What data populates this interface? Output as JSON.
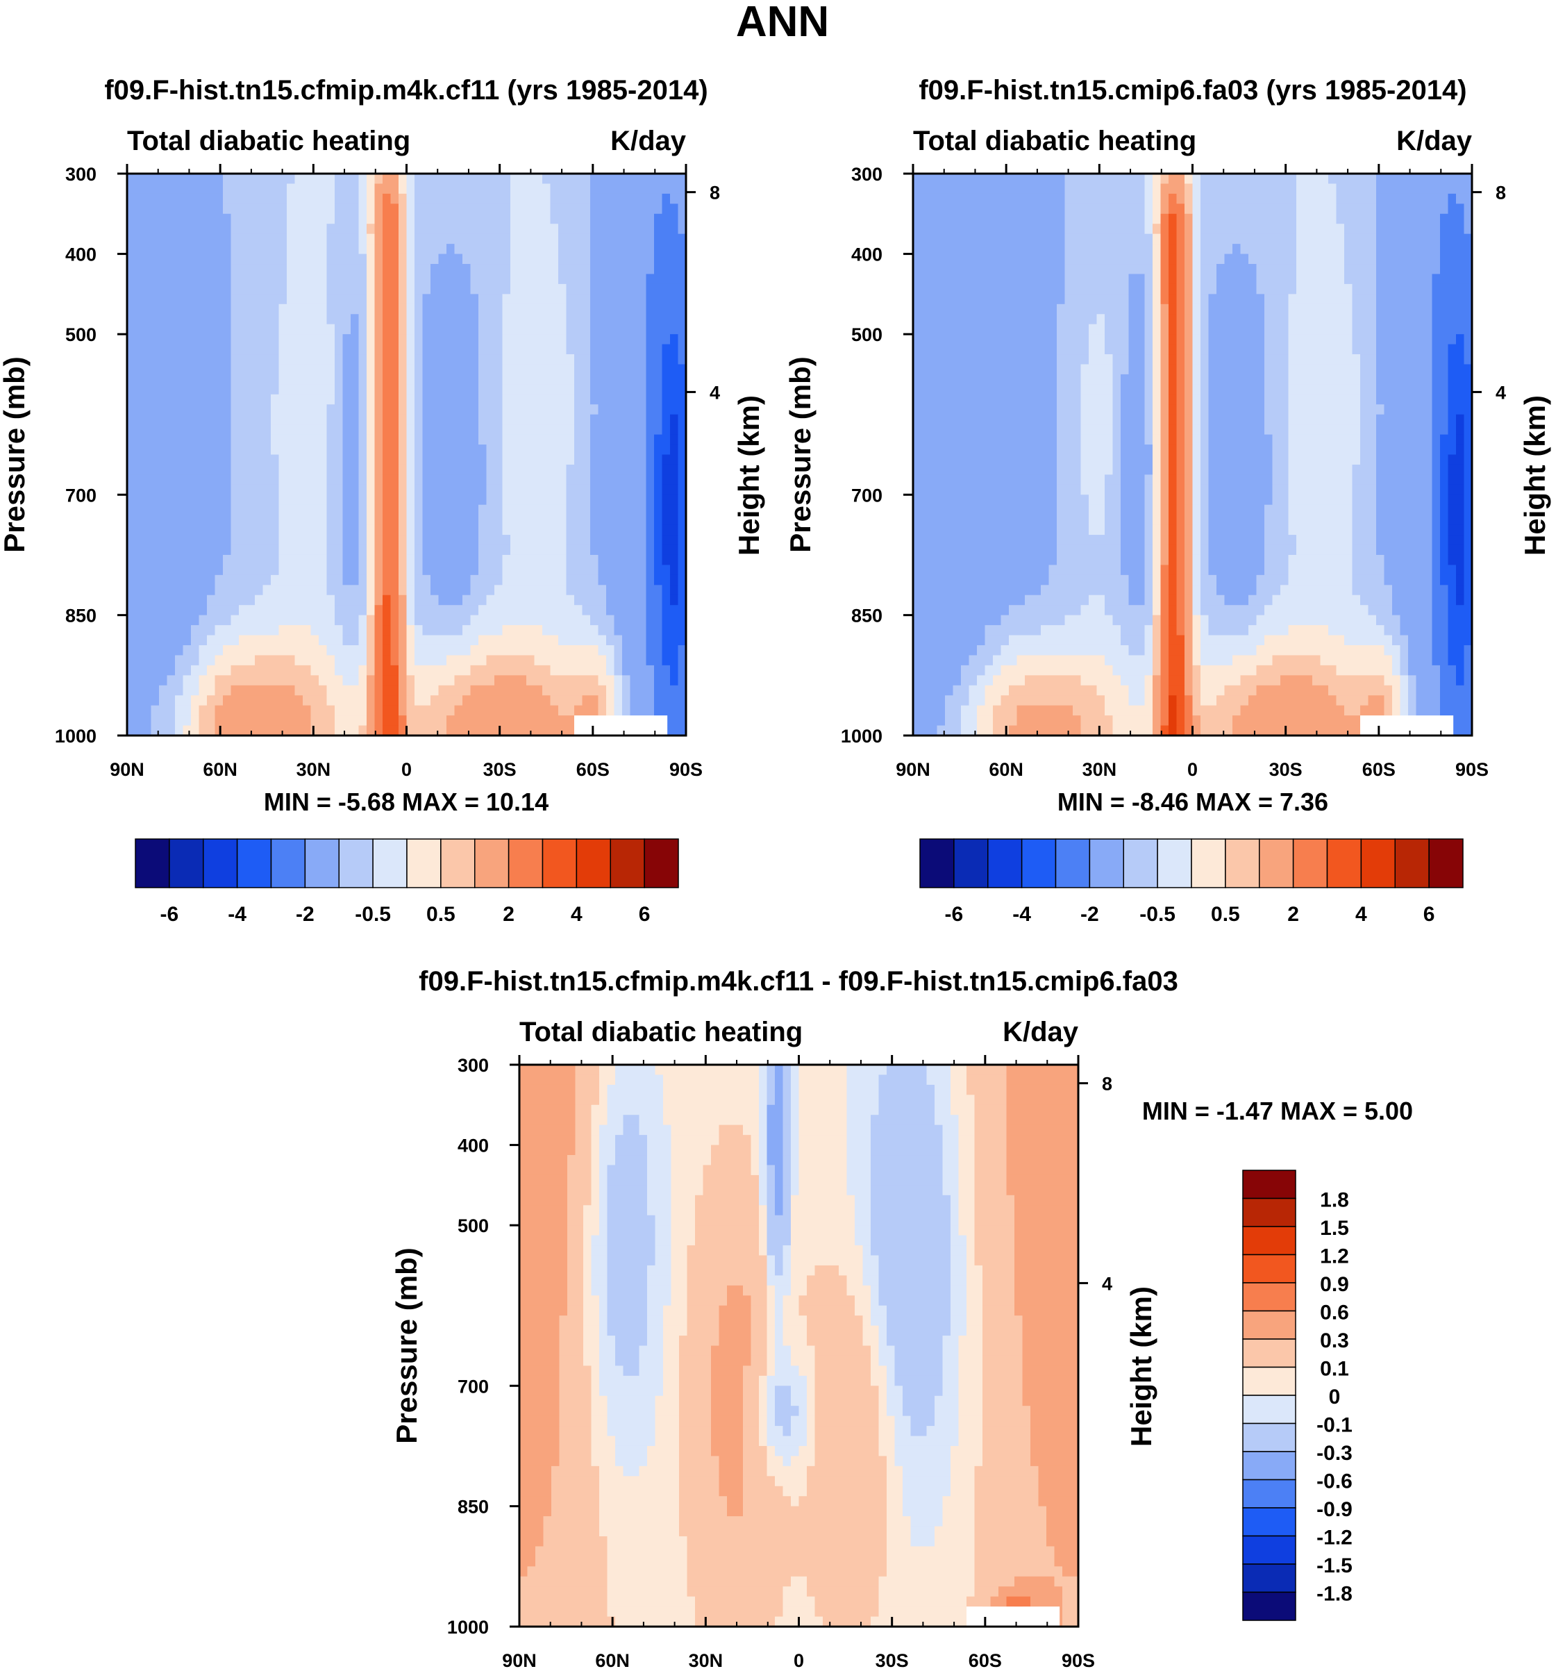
{
  "figure_title": "ANN",
  "colors": {
    "full": [
      "#0b0b78",
      "#0a2bb5",
      "#0f3fe0",
      "#1e5cf5",
      "#4c80f5",
      "#88aaf7",
      "#b6cbf8",
      "#dbe7fa",
      "#fde9d8",
      "#fbc7aa",
      "#f8a47d",
      "#f77e4e",
      "#f2571f",
      "#e33c08",
      "#b82605",
      "#870506"
    ],
    "diff": [
      "#0b0b78",
      "#0a2bb5",
      "#0f3fe0",
      "#1e5cf5",
      "#4c80f5",
      "#88aaf7",
      "#b6cbf8",
      "#dbe7fa",
      "#fde9d8",
      "#fbc7aa",
      "#f8a47d",
      "#f77e4e",
      "#f2571f",
      "#e33c08",
      "#b82605",
      "#870506"
    ]
  },
  "chart_data": [
    {
      "type": "heatmap",
      "id": "panel-a",
      "title": "f09.F-hist.tn15.cfmip.m4k.cf11 (yrs 1985-2014)",
      "left_label": "Total diabatic heating",
      "right_label": "K/day",
      "xlabel": "",
      "ylabel": "Pressure (mb)",
      "y2label": "Height (km)",
      "x_ticks": [
        "90N",
        "60N",
        "30N",
        "0",
        "30S",
        "60S",
        "90S"
      ],
      "y_ticks": [
        300,
        400,
        500,
        700,
        850,
        1000
      ],
      "y2_ticks": [
        8,
        4
      ],
      "xlim": [
        90,
        -90
      ],
      "ylim": [
        1000,
        300
      ],
      "min_label": "MIN =",
      "min": "-5.68",
      "max_label": "MAX =",
      "max": "10.14",
      "colorbar_orientation": "horizontal",
      "colorbar_labels": [
        "-6",
        "-4",
        "-2",
        "-0.5",
        "0.5",
        "2",
        "4",
        "6"
      ]
    },
    {
      "type": "heatmap",
      "id": "panel-b",
      "title": "f09.F-hist.tn15.cmip6.fa03 (yrs 1985-2014)",
      "left_label": "Total diabatic heating",
      "right_label": "K/day",
      "xlabel": "",
      "ylabel": "Pressure (mb)",
      "y2label": "Height (km)",
      "x_ticks": [
        "90N",
        "60N",
        "30N",
        "0",
        "30S",
        "60S",
        "90S"
      ],
      "y_ticks": [
        300,
        400,
        500,
        700,
        850,
        1000
      ],
      "y2_ticks": [
        8,
        4
      ],
      "xlim": [
        90,
        -90
      ],
      "ylim": [
        1000,
        300
      ],
      "min_label": "MIN =",
      "min": "-8.46",
      "max_label": "MAX =",
      "max": "7.36",
      "colorbar_orientation": "horizontal",
      "colorbar_labels": [
        "-6",
        "-4",
        "-2",
        "-0.5",
        "0.5",
        "2",
        "4",
        "6"
      ]
    },
    {
      "type": "heatmap",
      "id": "panel-c",
      "title": "f09.F-hist.tn15.cfmip.m4k.cf11 - f09.F-hist.tn15.cmip6.fa03",
      "left_label": "Total diabatic heating",
      "right_label": "K/day",
      "xlabel": "",
      "ylabel": "Pressure (mb)",
      "y2label": "Height (km)",
      "x_ticks": [
        "90N",
        "60N",
        "30N",
        "0",
        "30S",
        "60S",
        "90S"
      ],
      "y_ticks": [
        300,
        400,
        500,
        700,
        850,
        1000
      ],
      "y2_ticks": [
        8,
        4
      ],
      "xlim": [
        90,
        -90
      ],
      "ylim": [
        1000,
        300
      ],
      "min_label": "MIN =",
      "min": "-1.47",
      "max_label": "MAX =",
      "max": "5.00",
      "colorbar_orientation": "vertical",
      "colorbar_labels": [
        "1.8",
        "1.5",
        "1.2",
        "0.9",
        "0.6",
        "0.3",
        "0.1",
        "0",
        "-0.1",
        "-0.3",
        "-0.6",
        "-0.9",
        "-1.2",
        "-1.5",
        "-1.8"
      ]
    }
  ]
}
